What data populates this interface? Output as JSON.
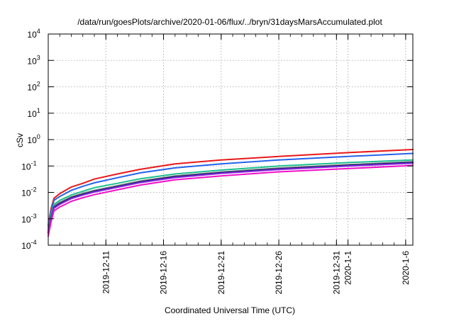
{
  "chart_data": {
    "type": "line",
    "title": "/data/run/goesPlots/archive/2020-01-06/flux/../bryn/31daysMarsAccumulated.plot",
    "xlabel": "Coordinated Universal Time (UTC)",
    "ylabel": "cSv",
    "y_scale": "log",
    "ylim": [
      0.0001,
      10000
    ],
    "xlim": [
      "2019-12-06",
      "2020-01-06T15:00"
    ],
    "grid": true,
    "x_ticks": [
      {
        "date": "2019-12-11",
        "lines": [
          "2019-12-11"
        ]
      },
      {
        "date": "2019-12-16",
        "lines": [
          "2019-12-16"
        ]
      },
      {
        "date": "2019-12-21",
        "lines": [
          "2019-12-21"
        ]
      },
      {
        "date": "2019-12-26",
        "lines": [
          "2019-12-26"
        ]
      },
      {
        "date": "2019-12-31",
        "lines": [
          "2019-12-31"
        ]
      },
      {
        "date": "2020-01-01",
        "lines": [
          "2020-1-1"
        ]
      },
      {
        "date": "2020-01-06",
        "lines": [
          "2020-1-6"
        ]
      }
    ],
    "y_ticks": [
      {
        "base": "10",
        "exp": "4",
        "value": 10000
      },
      {
        "base": "10",
        "exp": "3",
        "value": 1000
      },
      {
        "base": "10",
        "exp": "2",
        "value": 100
      },
      {
        "base": "10",
        "exp": "1",
        "value": 10
      },
      {
        "base": "10",
        "exp": "0",
        "value": 1
      },
      {
        "base": "10",
        "exp": "-1",
        "value": 0.1
      },
      {
        "base": "10",
        "exp": "-2",
        "value": 0.01
      },
      {
        "base": "10",
        "exp": "-3",
        "value": 0.001
      },
      {
        "base": "10",
        "exp": "-4",
        "value": 0.0001
      }
    ],
    "series": [
      {
        "color": "#e8191a",
        "width": 2.0,
        "x": [
          "2019-12-06",
          "2019-12-06T06:00",
          "2019-12-06T12:00",
          "2019-12-07",
          "2019-12-08",
          "2019-12-09",
          "2019-12-10",
          "2019-12-12",
          "2019-12-14",
          "2019-12-17",
          "2019-12-21",
          "2019-12-26",
          "2020-01-01",
          "2020-01-06T15:00"
        ],
        "y": [
          0.0006,
          0.0025,
          0.006,
          0.009,
          0.016,
          0.022,
          0.032,
          0.05,
          0.075,
          0.12,
          0.17,
          0.23,
          0.32,
          0.42
        ]
      },
      {
        "color": "#2563eb",
        "width": 2.0,
        "x": [
          "2019-12-06",
          "2019-12-06T06:00",
          "2019-12-06T12:00",
          "2019-12-07",
          "2019-12-08",
          "2019-12-09",
          "2019-12-10",
          "2019-12-12",
          "2019-12-14",
          "2019-12-17",
          "2019-12-21",
          "2019-12-26",
          "2020-01-01",
          "2020-01-06T15:00"
        ],
        "y": [
          0.0005,
          0.002,
          0.005,
          0.007,
          0.012,
          0.017,
          0.023,
          0.036,
          0.055,
          0.085,
          0.12,
          0.17,
          0.23,
          0.3
        ]
      },
      {
        "color": "#1fbf8f",
        "width": 2.0,
        "x": [
          "2019-12-06",
          "2019-12-06T06:00",
          "2019-12-06T12:00",
          "2019-12-07",
          "2019-12-08",
          "2019-12-09",
          "2019-12-10",
          "2019-12-12",
          "2019-12-14",
          "2019-12-17",
          "2019-12-21",
          "2019-12-26",
          "2020-01-01",
          "2020-01-06T15:00"
        ],
        "y": [
          0.0004,
          0.0015,
          0.0035,
          0.005,
          0.008,
          0.011,
          0.015,
          0.022,
          0.033,
          0.05,
          0.07,
          0.1,
          0.135,
          0.17
        ]
      },
      {
        "color": "#7b7f86",
        "width": 2.0,
        "x": [
          "2019-12-06",
          "2019-12-06T06:00",
          "2019-12-06T12:00",
          "2019-12-07",
          "2019-12-08",
          "2019-12-09",
          "2019-12-10",
          "2019-12-12",
          "2019-12-14",
          "2019-12-17",
          "2019-12-21",
          "2019-12-26",
          "2020-01-01",
          "2020-01-06T15:00"
        ],
        "y": [
          0.00035,
          0.0012,
          0.003,
          0.0042,
          0.0068,
          0.0092,
          0.012,
          0.018,
          0.027,
          0.042,
          0.059,
          0.084,
          0.113,
          0.145
        ]
      },
      {
        "color": "#1a1a6e",
        "width": 2.2,
        "x": [
          "2019-12-06",
          "2019-12-06T06:00",
          "2019-12-06T12:00",
          "2019-12-07",
          "2019-12-08",
          "2019-12-09",
          "2019-12-10",
          "2019-12-12",
          "2019-12-14",
          "2019-12-17",
          "2019-12-21",
          "2019-12-26",
          "2020-01-01",
          "2020-01-06T15:00"
        ],
        "y": [
          0.0003,
          0.0011,
          0.0027,
          0.0038,
          0.0062,
          0.0084,
          0.011,
          0.0165,
          0.025,
          0.039,
          0.055,
          0.078,
          0.105,
          0.135
        ]
      },
      {
        "color": "#8a2be2",
        "width": 2.0,
        "x": [
          "2019-12-06",
          "2019-12-06T06:00",
          "2019-12-06T12:00",
          "2019-12-07",
          "2019-12-08",
          "2019-12-09",
          "2019-12-10",
          "2019-12-12",
          "2019-12-14",
          "2019-12-17",
          "2019-12-21",
          "2019-12-26",
          "2020-01-01",
          "2020-01-06T15:00"
        ],
        "y": [
          0.00028,
          0.001,
          0.0025,
          0.0035,
          0.0058,
          0.0079,
          0.0103,
          0.0155,
          0.0235,
          0.0365,
          0.052,
          0.073,
          0.099,
          0.127
        ]
      },
      {
        "color": "#f010c8",
        "width": 2.0,
        "x": [
          "2019-12-06",
          "2019-12-06T06:00",
          "2019-12-06T12:00",
          "2019-12-07",
          "2019-12-08",
          "2019-12-09",
          "2019-12-10",
          "2019-12-12",
          "2019-12-14",
          "2019-12-17",
          "2019-12-21",
          "2019-12-26",
          "2020-01-01",
          "2020-01-06T15:00"
        ],
        "y": [
          0.00022,
          0.0008,
          0.002,
          0.0028,
          0.0046,
          0.0063,
          0.0082,
          0.0125,
          0.019,
          0.03,
          0.042,
          0.06,
          0.08,
          0.105
        ]
      }
    ]
  }
}
